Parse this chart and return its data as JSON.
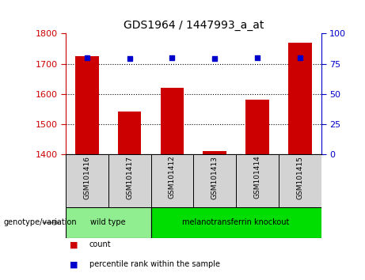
{
  "title": "GDS1964 / 1447993_a_at",
  "samples": [
    "GSM101416",
    "GSM101417",
    "GSM101412",
    "GSM101413",
    "GSM101414",
    "GSM101415"
  ],
  "counts": [
    1725,
    1540,
    1620,
    1410,
    1580,
    1770
  ],
  "percentile_ranks": [
    80,
    79,
    80,
    79,
    80,
    80
  ],
  "ylim_left": [
    1400,
    1800
  ],
  "ylim_right": [
    0,
    100
  ],
  "yticks_left": [
    1400,
    1500,
    1600,
    1700,
    1800
  ],
  "yticks_right": [
    0,
    25,
    50,
    75,
    100
  ],
  "bar_color": "#cc0000",
  "dot_color": "#0000cc",
  "groups": [
    {
      "label": "wild type",
      "indices": [
        0,
        1
      ],
      "color": "#90ee90"
    },
    {
      "label": "melanotransferrin knockout",
      "indices": [
        2,
        3,
        4,
        5
      ],
      "color": "#00dd00"
    }
  ],
  "group_label": "genotype/variation",
  "legend_count_label": "count",
  "legend_pct_label": "percentile rank within the sample",
  "left_axis_color": "#cc0000",
  "right_axis_color": "#0000cc",
  "bar_width": 0.55,
  "sample_box_color": "#d3d3d3",
  "grid_yticks": [
    1500,
    1600,
    1700
  ]
}
